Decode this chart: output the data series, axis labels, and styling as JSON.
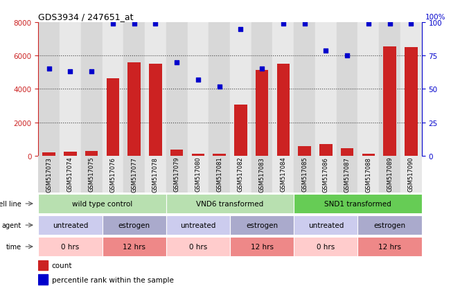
{
  "title": "GDS3934 / 247651_at",
  "samples": [
    "GSM517073",
    "GSM517074",
    "GSM517075",
    "GSM517076",
    "GSM517077",
    "GSM517078",
    "GSM517079",
    "GSM517080",
    "GSM517081",
    "GSM517082",
    "GSM517083",
    "GSM517084",
    "GSM517085",
    "GSM517086",
    "GSM517087",
    "GSM517088",
    "GSM517089",
    "GSM517090"
  ],
  "counts": [
    200,
    230,
    260,
    4650,
    5600,
    5500,
    350,
    100,
    100,
    3050,
    5150,
    5500,
    550,
    700,
    450,
    100,
    6550,
    6500
  ],
  "percentile": [
    65,
    63,
    63,
    99,
    99,
    99,
    70,
    57,
    52,
    95,
    65,
    99,
    99,
    79,
    75,
    99,
    99,
    99
  ],
  "ylim_left": [
    0,
    8000
  ],
  "ylim_right": [
    0,
    100
  ],
  "yticks_left": [
    0,
    2000,
    4000,
    6000,
    8000
  ],
  "yticks_right": [
    0,
    25,
    50,
    75,
    100
  ],
  "bar_color": "#cc2222",
  "dot_color": "#0000cc",
  "cell_line_rows": [
    {
      "label": "wild type control",
      "start": 0,
      "end": 6,
      "color": "#b8e0b0"
    },
    {
      "label": "VND6 transformed",
      "start": 6,
      "end": 12,
      "color": "#b8e0b0"
    },
    {
      "label": "SND1 transformed",
      "start": 12,
      "end": 18,
      "color": "#66cc55"
    }
  ],
  "agent_rows": [
    {
      "label": "untreated",
      "start": 0,
      "end": 3,
      "color": "#ccccee"
    },
    {
      "label": "estrogen",
      "start": 3,
      "end": 6,
      "color": "#aaaacc"
    },
    {
      "label": "untreated",
      "start": 6,
      "end": 9,
      "color": "#ccccee"
    },
    {
      "label": "estrogen",
      "start": 9,
      "end": 12,
      "color": "#aaaacc"
    },
    {
      "label": "untreated",
      "start": 12,
      "end": 15,
      "color": "#ccccee"
    },
    {
      "label": "estrogen",
      "start": 15,
      "end": 18,
      "color": "#aaaacc"
    }
  ],
  "time_rows": [
    {
      "label": "0 hrs",
      "start": 0,
      "end": 3,
      "color": "#ffcccc"
    },
    {
      "label": "12 hrs",
      "start": 3,
      "end": 6,
      "color": "#ee8888"
    },
    {
      "label": "0 hrs",
      "start": 6,
      "end": 9,
      "color": "#ffcccc"
    },
    {
      "label": "12 hrs",
      "start": 9,
      "end": 12,
      "color": "#ee8888"
    },
    {
      "label": "0 hrs",
      "start": 12,
      "end": 15,
      "color": "#ffcccc"
    },
    {
      "label": "12 hrs",
      "start": 15,
      "end": 18,
      "color": "#ee8888"
    }
  ],
  "col_bg_even": "#d8d8d8",
  "col_bg_odd": "#e8e8e8",
  "grid_color": "#444444",
  "axis_left_color": "#cc2222",
  "axis_right_color": "#0000cc",
  "legend_count_label": "count",
  "legend_pct_label": "percentile rank within the sample",
  "row_labels": [
    "cell line",
    "agent",
    "time"
  ]
}
